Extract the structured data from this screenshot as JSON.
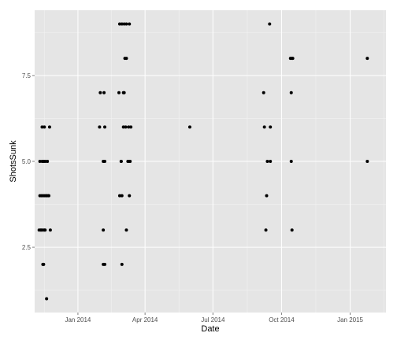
{
  "chart_data": {
    "type": "scatter",
    "title": "",
    "xlabel": "Date",
    "ylabel": "ShotsSunk",
    "xlim": [
      "2013-11-04",
      "2015-02-18"
    ],
    "ylim": [
      0.6,
      9.4
    ],
    "x_ticks": [
      {
        "date": "2014-01-01",
        "label": "Jan 2014"
      },
      {
        "date": "2014-04-01",
        "label": "Apr 2014"
      },
      {
        "date": "2014-07-01",
        "label": "Jul 2014"
      },
      {
        "date": "2014-10-01",
        "label": "Oct 2014"
      },
      {
        "date": "2015-01-01",
        "label": "Jan 2015"
      }
    ],
    "y_ticks": [
      {
        "value": 2.5,
        "label": "2.5"
      },
      {
        "value": 5.0,
        "label": "5.0"
      },
      {
        "value": 7.5,
        "label": "7.5"
      }
    ],
    "grid": true,
    "background": "#e5e5e5",
    "grid_color": "#ffffff",
    "point_color": "#000000",
    "points": [
      {
        "x": "2013-11-10",
        "y": 3
      },
      {
        "x": "2013-11-11",
        "y": 4
      },
      {
        "x": "2013-11-11",
        "y": 5
      },
      {
        "x": "2013-11-12",
        "y": 3
      },
      {
        "x": "2013-11-13",
        "y": 4
      },
      {
        "x": "2013-11-13",
        "y": 3
      },
      {
        "x": "2013-11-14",
        "y": 6
      },
      {
        "x": "2013-11-14",
        "y": 5
      },
      {
        "x": "2013-11-15",
        "y": 4
      },
      {
        "x": "2013-11-15",
        "y": 3
      },
      {
        "x": "2013-11-15",
        "y": 2
      },
      {
        "x": "2013-11-16",
        "y": 2
      },
      {
        "x": "2013-11-16",
        "y": 5
      },
      {
        "x": "2013-11-17",
        "y": 6
      },
      {
        "x": "2013-11-17",
        "y": 4
      },
      {
        "x": "2013-11-17",
        "y": 3
      },
      {
        "x": "2013-11-18",
        "y": 5
      },
      {
        "x": "2013-11-18",
        "y": 3
      },
      {
        "x": "2013-11-19",
        "y": 4
      },
      {
        "x": "2013-11-20",
        "y": 1
      },
      {
        "x": "2013-11-20",
        "y": 4
      },
      {
        "x": "2013-11-21",
        "y": 5
      },
      {
        "x": "2013-11-21",
        "y": 5
      },
      {
        "x": "2013-11-22",
        "y": 4
      },
      {
        "x": "2013-11-23",
        "y": 4
      },
      {
        "x": "2013-11-24",
        "y": 6
      },
      {
        "x": "2013-11-25",
        "y": 3
      },
      {
        "x": "2014-01-30",
        "y": 6
      },
      {
        "x": "2014-01-31",
        "y": 7
      },
      {
        "x": "2014-02-04",
        "y": 5
      },
      {
        "x": "2014-02-04",
        "y": 3
      },
      {
        "x": "2014-02-04",
        "y": 2
      },
      {
        "x": "2014-02-05",
        "y": 7
      },
      {
        "x": "2014-02-05",
        "y": 5
      },
      {
        "x": "2014-02-06",
        "y": 6
      },
      {
        "x": "2014-02-06",
        "y": 2
      },
      {
        "x": "2014-02-06",
        "y": 5
      },
      {
        "x": "2014-02-25",
        "y": 7
      },
      {
        "x": "2014-02-26",
        "y": 9
      },
      {
        "x": "2014-02-26",
        "y": 4
      },
      {
        "x": "2014-02-28",
        "y": 5
      },
      {
        "x": "2014-02-28",
        "y": 5
      },
      {
        "x": "2014-03-01",
        "y": 9
      },
      {
        "x": "2014-03-01",
        "y": 4
      },
      {
        "x": "2014-03-01",
        "y": 2
      },
      {
        "x": "2014-03-03",
        "y": 6
      },
      {
        "x": "2014-03-03",
        "y": 7
      },
      {
        "x": "2014-03-04",
        "y": 9
      },
      {
        "x": "2014-03-04",
        "y": 7
      },
      {
        "x": "2014-03-05",
        "y": 8
      },
      {
        "x": "2014-03-06",
        "y": 6
      },
      {
        "x": "2014-03-07",
        "y": 3
      },
      {
        "x": "2014-03-07",
        "y": 9
      },
      {
        "x": "2014-03-07",
        "y": 8
      },
      {
        "x": "2014-03-09",
        "y": 5
      },
      {
        "x": "2014-03-10",
        "y": 6
      },
      {
        "x": "2014-03-11",
        "y": 9
      },
      {
        "x": "2014-03-11",
        "y": 5
      },
      {
        "x": "2014-03-11",
        "y": 4
      },
      {
        "x": "2014-03-12",
        "y": 5
      },
      {
        "x": "2014-03-13",
        "y": 6
      },
      {
        "x": "2014-05-31",
        "y": 6
      },
      {
        "x": "2014-09-07",
        "y": 7
      },
      {
        "x": "2014-09-08",
        "y": 6
      },
      {
        "x": "2014-09-10",
        "y": 3
      },
      {
        "x": "2014-09-11",
        "y": 4
      },
      {
        "x": "2014-09-12",
        "y": 5
      },
      {
        "x": "2014-09-15",
        "y": 9
      },
      {
        "x": "2014-09-16",
        "y": 6
      },
      {
        "x": "2014-09-16",
        "y": 5
      },
      {
        "x": "2014-10-13",
        "y": 8
      },
      {
        "x": "2014-10-14",
        "y": 7
      },
      {
        "x": "2014-10-14",
        "y": 5
      },
      {
        "x": "2014-10-15",
        "y": 8
      },
      {
        "x": "2014-10-15",
        "y": 3
      },
      {
        "x": "2014-10-16",
        "y": 8
      },
      {
        "x": "2015-01-24",
        "y": 8
      },
      {
        "x": "2015-01-24",
        "y": 5
      }
    ]
  }
}
